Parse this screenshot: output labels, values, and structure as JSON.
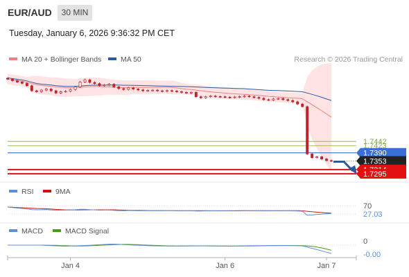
{
  "header": {
    "symbol": "EUR/AUD",
    "timeframe": "30 MIN",
    "datetime": "Tuesday, January 6, 2026 9:36:32 PM CET"
  },
  "legend": {
    "ma20_label": "MA 20 + Bollinger Bands",
    "ma50_label": "MA 50",
    "copyright": "Research © 2026 Trading Central",
    "rsi_label": "RSI",
    "rsi_ma_label": "9MA",
    "macd_label": "MACD",
    "macd_signal_label": "MACD Signal"
  },
  "colors": {
    "ma20": "#f08080",
    "ma50": "#2c5a9c",
    "bollinger_fill": "#fde3e3",
    "candle": "#c0222a",
    "resistance": "#7fae3c",
    "pivot": "#3a6fd8",
    "last_price_bg": "#222222",
    "support": "#e01010",
    "rsi": "#5b8ed6",
    "rsi_ma": "#d01010",
    "macd": "#5b8ed6",
    "macd_signal": "#4a9a1a"
  },
  "chart_data": {
    "type": "candlestick",
    "x_tick_labels": [
      "Jan 4",
      "Jan 6",
      "Jan 7"
    ],
    "ylim": [
      1.726,
      1.777
    ],
    "closes": [
      1.7725,
      1.7718,
      1.7712,
      1.7706,
      1.7695,
      1.7672,
      1.7668,
      1.7675,
      1.768,
      1.7672,
      1.7662,
      1.7668,
      1.767,
      1.7678,
      1.769,
      1.7712,
      1.7722,
      1.771,
      1.7705,
      1.7695,
      1.7698,
      1.7702,
      1.769,
      1.7682,
      1.7678,
      1.7685,
      1.768,
      1.7676,
      1.7672,
      1.7674,
      1.7675,
      1.7672,
      1.767,
      1.7673,
      1.7671,
      1.7668,
      1.7665,
      1.7662,
      1.7665,
      1.7645,
      1.764,
      1.7645,
      1.7648,
      1.7646,
      1.7645,
      1.7643,
      1.7642,
      1.7644,
      1.7646,
      1.7648,
      1.7645,
      1.7642,
      1.7638,
      1.7632,
      1.763,
      1.7635,
      1.7637,
      1.7632,
      1.7628,
      1.7622,
      1.7612,
      1.76,
      1.7385,
      1.7368,
      1.7372,
      1.7362,
      1.7355,
      1.7353
    ],
    "levels": [
      {
        "label": "1.7442",
        "role": "resistance"
      },
      {
        "label": "1.7423",
        "role": "resistance"
      },
      {
        "label": "1.7390",
        "role": "pivot"
      },
      {
        "label": "1.7353",
        "role": "last"
      },
      {
        "label": "1.7314",
        "role": "support"
      },
      {
        "label": "1.7295",
        "role": "support"
      }
    ],
    "rsi_axis_labels": [
      "70",
      "27.03"
    ],
    "macd_axis_labels": [
      "0",
      "-0.00"
    ],
    "legend_position": "top-left",
    "grid": false
  }
}
